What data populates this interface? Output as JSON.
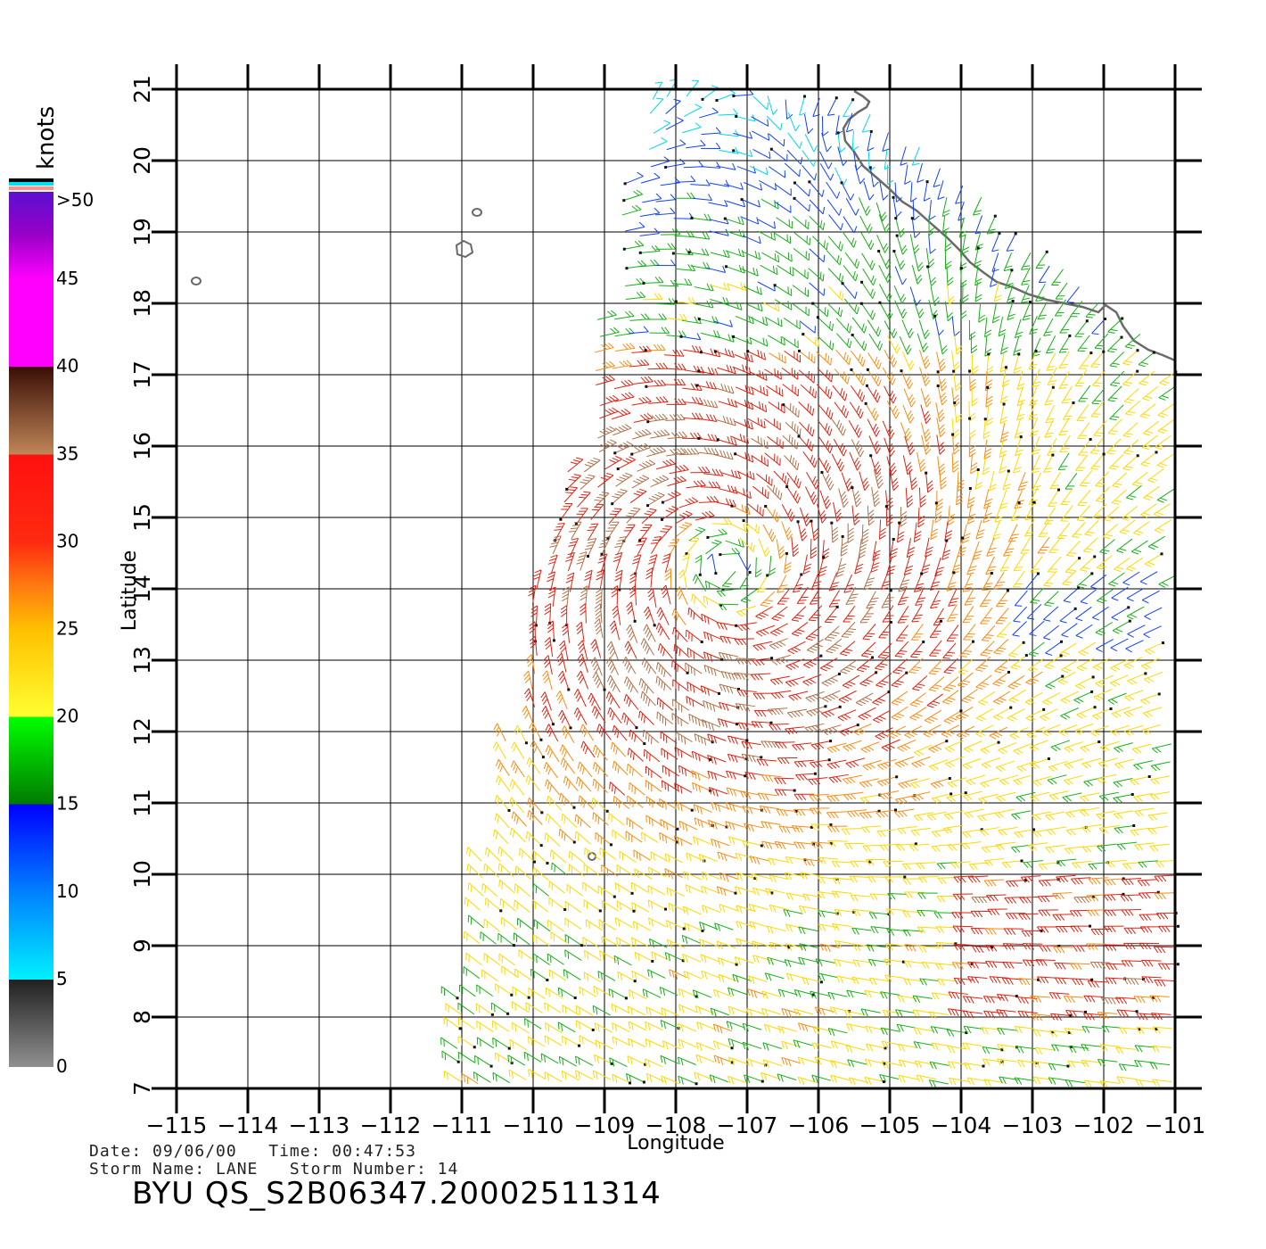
{
  "colorbar": {
    "unit_label": "knots",
    "stops": [
      {
        "label": ">50",
        "color": "#6a0fc9"
      },
      {
        "label": "45",
        "color": "#b400c8"
      },
      {
        "label": "40",
        "color": "#4a1408"
      },
      {
        "label": "35",
        "color": "#b87a52"
      },
      {
        "label": "30",
        "color": "#e92b10"
      },
      {
        "label": "25",
        "color": "#ff9d00"
      },
      {
        "label": "20",
        "color": "#ffee20"
      },
      {
        "label": "15",
        "color": "#00a800"
      },
      {
        "label": "10",
        "color": "#0a5cff"
      },
      {
        "label": "5",
        "color": "#00e6f0"
      },
      {
        "label": "0",
        "color": "#8a8a8a"
      }
    ]
  },
  "axes": {
    "xlabel": "Longitude",
    "ylabel": "Latitude",
    "x_ticks": [
      "-115",
      "-114",
      "-113",
      "-112",
      "-111",
      "-110",
      "-109",
      "-108",
      "-107",
      "-106",
      "-105",
      "-104",
      "-103",
      "-102",
      "-101"
    ],
    "y_ticks": [
      "7",
      "8",
      "9",
      "10",
      "11",
      "12",
      "13",
      "14",
      "15",
      "16",
      "17",
      "18",
      "19",
      "20",
      "21"
    ]
  },
  "chart_data": {
    "type": "wind-barb map",
    "xlabel": "Longitude",
    "ylabel": "Latitude",
    "xlim": [
      -115,
      -101
    ],
    "ylim": [
      7,
      21
    ],
    "colorbar_unit": "knots",
    "storm_center": {
      "lon": -107.3,
      "lat": 14.3
    },
    "swath_description": "QuikScat wind vectors from about -111 to -101 longitude"
  },
  "info": {
    "line1": "Date: 09/06/00   Time: 00:47:53",
    "line2": "Storm Name: LANE   Storm Number: 14",
    "product": "BYU QS_S2B06347.20002511314"
  }
}
